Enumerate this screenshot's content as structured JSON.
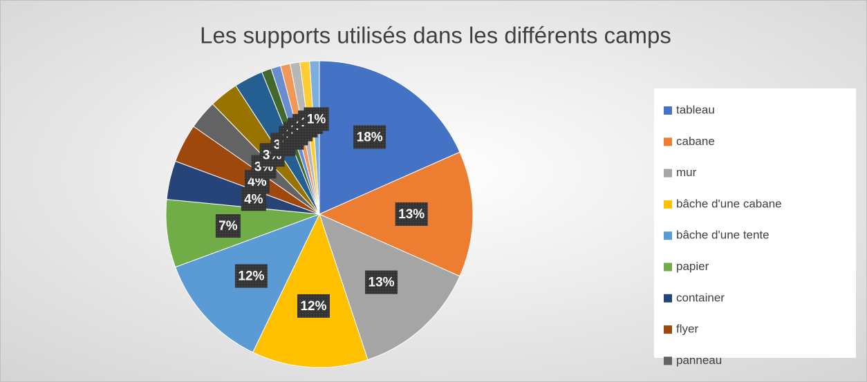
{
  "chart_data": {
    "type": "pie",
    "title": "Les supports utilisés dans les différents camps",
    "categories": [
      "tableau",
      "cabane",
      "mur",
      "bâche d'une cabane",
      "bâche d'une tente",
      "papier",
      "container",
      "flyer",
      "panneau",
      null,
      null,
      null,
      null,
      null,
      null,
      null,
      null
    ],
    "values": [
      18,
      13,
      13,
      12,
      12,
      7,
      4,
      4,
      3,
      3,
      3,
      1,
      1,
      1,
      1,
      1,
      1
    ],
    "value_labels": [
      "18%",
      "13%",
      "13%",
      "12%",
      "12%",
      "7%",
      "4%",
      "4%",
      "3%",
      "3%",
      "3%",
      "1%",
      "1%",
      "1%",
      "1%",
      "1%",
      "1%"
    ],
    "colors": [
      "#4472c4",
      "#ed7d31",
      "#a5a5a5",
      "#ffc000",
      "#5b9bd5",
      "#70ad47",
      "#264478",
      "#9e480e",
      "#636363",
      "#997300",
      "#255e91",
      "#43682b",
      "#698ed0",
      "#f1975a",
      "#b7b7b7",
      "#ffcd33",
      "#7cafdd"
    ],
    "legend": "right"
  }
}
